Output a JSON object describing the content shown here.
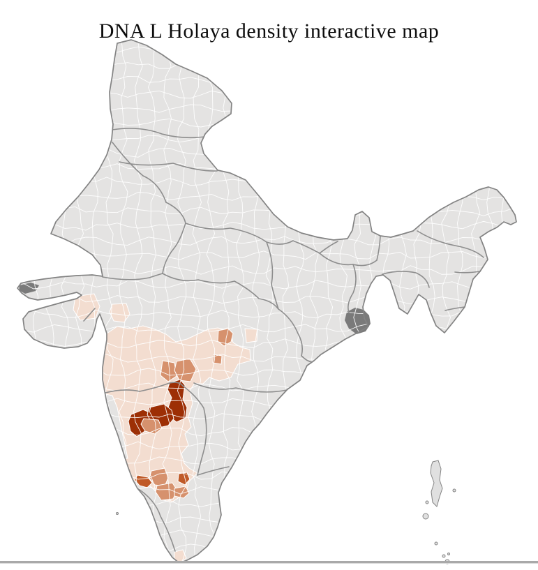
{
  "title": "DNA L Holaya density interactive map",
  "map": {
    "name": "india-district-choropleth",
    "palette": {
      "base": "#e4e3e2",
      "level1": "#f3ddd0",
      "level2": "#d6916d",
      "level3": "#c05a28",
      "level4": "#9d2f05",
      "district_border": "#ffffff",
      "state_border": "#8d8d8d",
      "country_outline": "#838383",
      "marsh": "#7a7a7a",
      "island": "#e0e0e0",
      "ocean": "#ffffff"
    },
    "regions": [
      {
        "id": "north-gujarat-west-district",
        "level": 1
      },
      {
        "id": "north-gujarat-east-district",
        "level": 1
      },
      {
        "id": "maharashtra-karnataka-belt",
        "level": 1
      },
      {
        "id": "coastal-goa-strip",
        "level": 0
      },
      {
        "id": "east-vidarbha-district",
        "level": 1
      },
      {
        "id": "nagpur-area-district",
        "level": 2
      },
      {
        "id": "small-marathwada-district",
        "level": 2
      },
      {
        "id": "solapur-area-district",
        "level": 2
      },
      {
        "id": "osmanabad-area-district",
        "level": 2
      },
      {
        "id": "north-karnataka-cluster-a",
        "level": 4
      },
      {
        "id": "north-karnataka-cluster-b",
        "level": 4
      },
      {
        "id": "north-karnataka-cluster-c",
        "level": 4
      },
      {
        "id": "belgaum-south-district",
        "level": 2
      },
      {
        "id": "coastal-karnataka-district",
        "level": 3
      },
      {
        "id": "hassan-area-district",
        "level": 2
      },
      {
        "id": "mysore-area-district",
        "level": 2
      },
      {
        "id": "bangalore-area-district",
        "level": 3
      },
      {
        "id": "mandya-area-district",
        "level": 2
      },
      {
        "id": "kanyakumari-tip-district",
        "level": 1
      }
    ]
  }
}
